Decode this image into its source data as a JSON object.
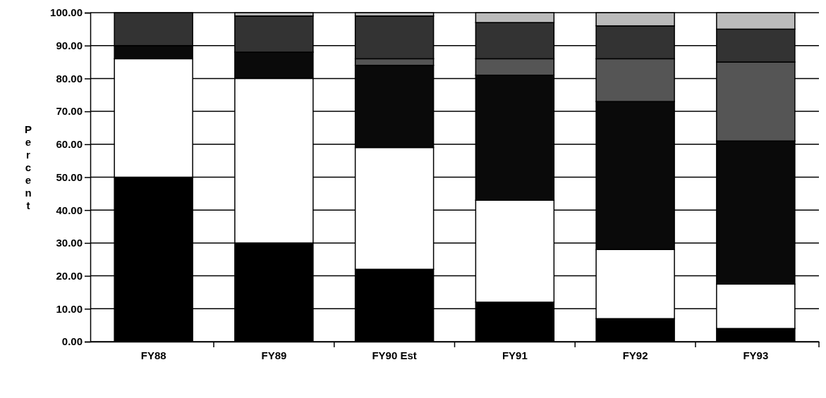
{
  "chart_data": {
    "type": "bar",
    "stacked": true,
    "ylabel": "Percent",
    "categories": [
      "FY88",
      "FY89",
      "FY90 Est",
      "FY91",
      "FY92",
      "FY93"
    ],
    "series": [
      {
        "color": "#000000",
        "values": [
          50,
          30,
          22,
          12,
          7,
          4
        ]
      },
      {
        "color": "#ffffff",
        "values": [
          36,
          50,
          37,
          31,
          21,
          13.5
        ]
      },
      {
        "color": "#0a0a0a",
        "values": [
          4,
          8,
          25,
          38,
          45,
          43.5
        ]
      },
      {
        "color": "#555555",
        "values": [
          0,
          0,
          2,
          5,
          13,
          24
        ]
      },
      {
        "color": "#333333",
        "values": [
          10,
          11,
          13,
          11,
          10,
          10
        ]
      },
      {
        "color": "#bbbbbb",
        "values": [
          0,
          1,
          1,
          3,
          4,
          5
        ]
      }
    ],
    "ylim": [
      0,
      100
    ],
    "yticks": [
      {
        "value": 0,
        "label": "0.00"
      },
      {
        "value": 10,
        "label": "10.00"
      },
      {
        "value": 20,
        "label": "20.00"
      },
      {
        "value": 30,
        "label": "30.00"
      },
      {
        "value": 40,
        "label": "40.00"
      },
      {
        "value": 50,
        "label": "50.00"
      },
      {
        "value": 60,
        "label": "60.00"
      },
      {
        "value": 70,
        "label": "70.00"
      },
      {
        "value": 80,
        "label": "80.00"
      },
      {
        "value": 90,
        "label": "90.00"
      },
      {
        "value": 100,
        "label": "100.00"
      }
    ],
    "grid": "y"
  }
}
